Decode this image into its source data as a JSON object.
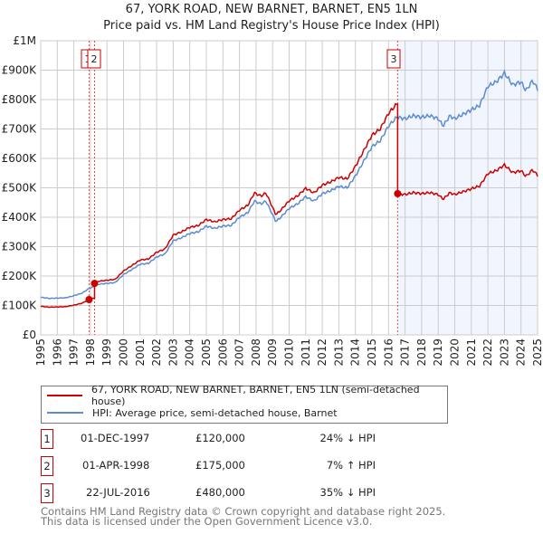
{
  "title": "67, YORK ROAD, NEW BARNET, BARNET, EN5 1LN",
  "subtitle": "Price paid vs. HM Land Registry's House Price Index (HPI)",
  "chart_data": {
    "type": "line",
    "ylabel": "",
    "xlabel": "",
    "xlim": [
      1995,
      2025
    ],
    "ylim": [
      0,
      1000000
    ],
    "y_ticks": [
      {
        "v": 0,
        "label": "£0"
      },
      {
        "v": 100000,
        "label": "£100K"
      },
      {
        "v": 200000,
        "label": "£200K"
      },
      {
        "v": 300000,
        "label": "£300K"
      },
      {
        "v": 400000,
        "label": "£400K"
      },
      {
        "v": 500000,
        "label": "£500K"
      },
      {
        "v": 600000,
        "label": "£600K"
      },
      {
        "v": 700000,
        "label": "£700K"
      },
      {
        "v": 800000,
        "label": "£800K"
      },
      {
        "v": 900000,
        "label": "£900K"
      },
      {
        "v": 1000000,
        "label": "£1M"
      }
    ],
    "x_ticks": [
      "1995",
      "1996",
      "1997",
      "1998",
      "1999",
      "2000",
      "2001",
      "2002",
      "2003",
      "2004",
      "2005",
      "2006",
      "2007",
      "2008",
      "2009",
      "2010",
      "2011",
      "2012",
      "2013",
      "2014",
      "2015",
      "2016",
      "2017",
      "2018",
      "2019",
      "2020",
      "2021",
      "2022",
      "2023",
      "2024",
      "2025"
    ],
    "grid": true,
    "shaded_from": 2016.55,
    "series": [
      {
        "name": "HPI: Average price, semi-detached house, Barnet",
        "color": "#5b8bd0",
        "x": [
          1995,
          1995.5,
          1996,
          1996.5,
          1997,
          1997.5,
          1997.92,
          1998.25,
          1998.5,
          1999,
          1999.5,
          2000,
          2000.5,
          2001,
          2001.5,
          2002,
          2002.5,
          2003,
          2003.5,
          2004,
          2004.5,
          2005,
          2005.5,
          2006,
          2006.5,
          2007,
          2007.5,
          2007.9,
          2008.3,
          2008.6,
          2009.2,
          2009.5,
          2010,
          2010.5,
          2011,
          2011.5,
          2012,
          2012.5,
          2013,
          2013.5,
          2014,
          2014.5,
          2015,
          2015.5,
          2016,
          2016.5,
          2017,
          2017.5,
          2018,
          2018.5,
          2019,
          2019.3,
          2019.7,
          2020,
          2020.5,
          2021,
          2021.5,
          2022,
          2022.5,
          2023,
          2023.5,
          2024,
          2024.3,
          2024.7,
          2025
        ],
        "y": [
          128000,
          124000,
          125000,
          126000,
          133000,
          142000,
          158000,
          165000,
          172000,
          175000,
          178000,
          205000,
          222000,
          240000,
          243000,
          265000,
          275000,
          320000,
          330000,
          345000,
          350000,
          370000,
          362000,
          370000,
          372000,
          400000,
          415000,
          455000,
          445000,
          455000,
          385000,
          400000,
          430000,
          445000,
          470000,
          455000,
          480000,
          490000,
          505000,
          500000,
          540000,
          590000,
          640000,
          660000,
          710000,
          740000,
          735000,
          745000,
          740000,
          745000,
          735000,
          710000,
          745000,
          735000,
          750000,
          765000,
          780000,
          845000,
          860000,
          890000,
          850000,
          860000,
          830000,
          865000,
          835000
        ]
      },
      {
        "name": "67, YORK ROAD, NEW BARNET, BARNET, EN5 1LN (semi-detached house)",
        "color": "#cc0000",
        "derived_from_hpi": true
      }
    ],
    "sales": [
      {
        "n": "1",
        "date": "01-DEC-1997",
        "x": 1997.92,
        "price": 120000,
        "price_label": "£120,000",
        "hpi": "24% ↓ HPI"
      },
      {
        "n": "2",
        "date": "01-APR-1998",
        "x": 1998.25,
        "price": 175000,
        "price_label": "£175,000",
        "hpi": "7% ↑ HPI"
      },
      {
        "n": "3",
        "date": "22-JUL-2016",
        "x": 2016.55,
        "price": 480000,
        "price_label": "£480,000",
        "hpi": "35% ↓ HPI"
      }
    ]
  },
  "legend": {
    "property": "67, YORK ROAD, NEW BARNET, BARNET, EN5 1LN (semi-detached house)",
    "hpi": "HPI: Average price, semi-detached house, Barnet"
  },
  "footer": {
    "line1": "Contains HM Land Registry data © Crown copyright and database right 2025.",
    "line2": "This data is licensed under the Open Government Licence v3.0."
  }
}
